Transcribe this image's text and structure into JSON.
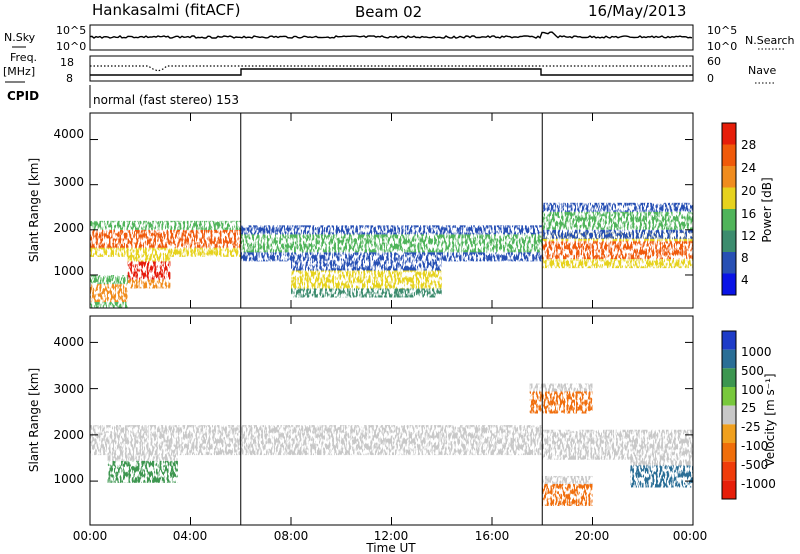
{
  "header": {
    "station": "Hankasalmi (fitACF)",
    "beam": "Beam 02",
    "date": "16/May/2013"
  },
  "noise_panel": {
    "left_label": "N.Sky",
    "right_label": "N.Search",
    "scale_top": "10^5",
    "scale_bottom": "10^0"
  },
  "freq_panel": {
    "left_label_1": "Freq.",
    "left_label_2": "[MHz]",
    "left_ticks": [
      "18",
      "8"
    ],
    "right_label": "Nave",
    "right_ticks": [
      "60",
      "0"
    ]
  },
  "cpid": {
    "label": "CPID",
    "text": "normal (fast stereo) 153"
  },
  "power_panel": {
    "ylabel": "Slant Range [km]",
    "yticks": [
      "4000",
      "3000",
      "2000",
      "1000"
    ],
    "cbar_label": "Power [dB]",
    "cbar_ticks": [
      "28",
      "24",
      "20",
      "16",
      "12",
      "8",
      "4"
    ],
    "cbar_colors": [
      "#0a14e6",
      "#2850b4",
      "#3c8c6e",
      "#50b45a",
      "#e6d21e",
      "#f08c1e",
      "#f05a0a",
      "#e61e0a"
    ]
  },
  "velocity_panel": {
    "ylabel": "Slant Range [km]",
    "yticks": [
      "4000",
      "3000",
      "2000",
      "1000"
    ],
    "cbar_label": "Velocity [m s⁻¹]",
    "cbar_ticks": [
      "1000",
      "500",
      "100",
      "25",
      "-25",
      "-100",
      "-500",
      "-1000"
    ],
    "cbar_colors": [
      "#1e3cc8",
      "#2a6e96",
      "#3c9650",
      "#78c83c",
      "#c8c8c8",
      "#f0a01e",
      "#f06e0a",
      "#f03c0a",
      "#e61e0a"
    ]
  },
  "x_axis": {
    "ticks": [
      "00:00",
      "04:00",
      "08:00",
      "12:00",
      "16:00",
      "20:00",
      "00:00"
    ],
    "label": "Time UT"
  },
  "chart_data": {
    "type": "heatmap",
    "x_range_hours": [
      0,
      24
    ],
    "y_range_km": [
      180,
      4500
    ],
    "mode_change_hours": [
      6,
      18
    ],
    "power_echo_bands": [
      {
        "t_start": 0,
        "t_end": 6,
        "range_center_km": 1800,
        "power_db": 24
      },
      {
        "t_start": 1.5,
        "t_end": 3.2,
        "range_center_km": 1100,
        "power_db": 28
      },
      {
        "t_start": 0,
        "t_end": 1.5,
        "range_center_km": 600,
        "power_db": 22
      },
      {
        "t_start": 6,
        "t_end": 18,
        "range_center_km": 1700,
        "power_db": 12
      },
      {
        "t_start": 8,
        "t_end": 14,
        "range_center_km": 900,
        "power_db": 16
      },
      {
        "t_start": 18,
        "t_end": 24,
        "range_center_km": 1550,
        "power_db": 26
      },
      {
        "t_start": 18,
        "t_end": 24,
        "range_center_km": 2200,
        "power_db": 14
      }
    ],
    "velocity_echo_bands": [
      {
        "t_start": 0,
        "t_end": 18,
        "range_center_km": 1800,
        "velocity_ms": 0
      },
      {
        "t_start": 0.7,
        "t_end": 3.5,
        "range_center_km": 1200,
        "velocity_ms": 400
      },
      {
        "t_start": 17.5,
        "t_end": 20,
        "range_center_km": 2700,
        "velocity_ms": -150
      },
      {
        "t_start": 18,
        "t_end": 20,
        "range_center_km": 700,
        "velocity_ms": -400
      },
      {
        "t_start": 21.5,
        "t_end": 24,
        "range_center_km": 1100,
        "velocity_ms": 600
      },
      {
        "t_start": 18,
        "t_end": 24,
        "range_center_km": 1700,
        "velocity_ms": 0
      }
    ]
  }
}
